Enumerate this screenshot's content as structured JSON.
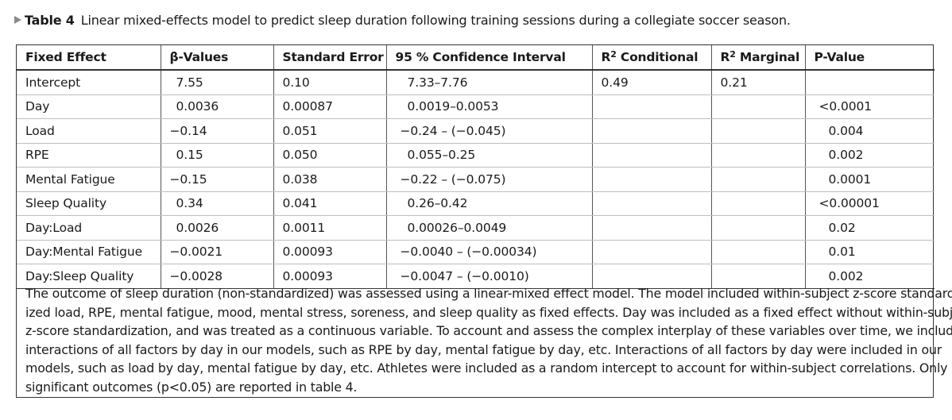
{
  "caption": {
    "label": "Table 4",
    "text": "Linear mixed-effects model to predict sleep duration following training sessions during a collegiate soccer season."
  },
  "table": {
    "headers": [
      {
        "text": "Fixed Effect",
        "sup": ""
      },
      {
        "text": "β-Values",
        "sup": ""
      },
      {
        "text": "Standard Error",
        "sup": ""
      },
      {
        "text": "95 % Confidence Interval",
        "sup": ""
      },
      {
        "text": " Conditional",
        "pre": "R",
        "sup": "2"
      },
      {
        "text": " Marginal",
        "pre": "R",
        "sup": "2"
      },
      {
        "text": "P-Value",
        "sup": ""
      }
    ],
    "rows": [
      [
        "Intercept",
        "7.55",
        "0.10",
        "7.33–7.76",
        "0.49",
        "0.21",
        ""
      ],
      [
        "Day",
        "0.0036",
        "0.00087",
        "0.0019–0.0053",
        "",
        "",
        "<0.0001"
      ],
      [
        "Load",
        "−0.14",
        "0.051",
        "−0.24 – (−0.045)",
        "",
        "",
        "0.004"
      ],
      [
        "RPE",
        "0.15",
        "0.050",
        "0.055–0.25",
        "",
        "",
        "0.002"
      ],
      [
        "Mental Fatigue",
        "−0.15",
        "0.038",
        "−0.22 – (−0.075)",
        "",
        "",
        "0.0001"
      ],
      [
        "Sleep Quality",
        "0.34",
        "0.041",
        "0.26–0.42",
        "",
        "",
        "<0.00001"
      ],
      [
        "Day:Load",
        "0.0026",
        "0.0011",
        "0.00026–0.0049",
        "",
        "",
        "0.02"
      ],
      [
        "Day:Mental Fatigue",
        "−0.0021",
        "0.00093",
        "−0.0040 – (−0.00034)",
        "",
        "",
        "0.01"
      ],
      [
        "Day:Sleep Quality",
        "−0.0028",
        "0.00093",
        "−0.0047 – (−0.0010)",
        "",
        "",
        "0.002"
      ]
    ]
  },
  "footnote": {
    "lines": [
      "The outcome of sleep duration (non-standardized) was assessed using a linear-mixed effect model. The model included within-subject z-score standard-",
      "ized load, RPE, mental fatigue, mood, mental stress, soreness, and sleep quality as fixed effects. Day was included as a fixed effect without within-subject",
      "z-score standardization, and was treated as a continuous variable. To account and assess the complex interplay of these variables over time, we included",
      "interactions of all factors by day in our models, such as RPE by day, mental fatigue by day, etc. Interactions of all factors by day were included in our",
      "models, such as load by day, mental fatigue by day, etc. Athletes were included as a random intercept to account for within-subject correlations. Only",
      "significant outcomes (p<0.05) are reported in table 4."
    ]
  },
  "colors": {
    "text": "#1a1a1a",
    "rule": "#333333",
    "arrow": "#8a8a8a"
  }
}
